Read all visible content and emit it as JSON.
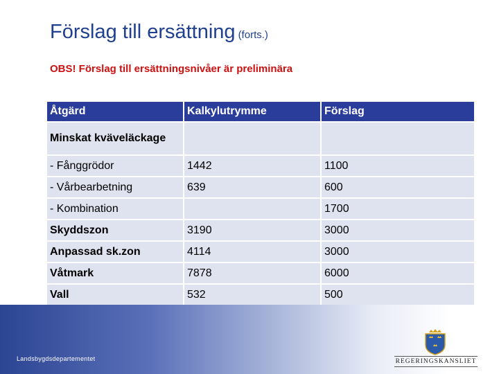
{
  "slide": {
    "title": "Förslag till ersättning",
    "title_suffix": "(forts.)",
    "warning": "OBS! Förslag till ersättningsnivåer är preliminära"
  },
  "table": {
    "headers": [
      "Åtgärd",
      "Kalkylutrymme",
      "Förslag"
    ],
    "rows": [
      {
        "measure": "Minskat kväveläckage",
        "budget": "",
        "proposal": ""
      },
      {
        "measure": "- Fånggrödor",
        "budget": "1442",
        "proposal": "1100"
      },
      {
        "measure": "- Vårbearbetning",
        "budget": "639",
        "proposal": "600"
      },
      {
        "measure": "- Kombination",
        "budget": "",
        "proposal": "1700"
      },
      {
        "measure": "Skyddszon",
        "budget": "3190",
        "proposal": "3000"
      },
      {
        "measure": "Anpassad sk.zon",
        "budget": "4114",
        "proposal": "3000"
      },
      {
        "measure": "Våtmark",
        "budget": "7878",
        "proposal": "6000"
      },
      {
        "measure": "Vall",
        "budget": "532",
        "proposal": "500"
      }
    ]
  },
  "footer": {
    "department": "Landsbygdsdepartementet",
    "logo_text": "REGERINGSKANSLIET",
    "crest_icon": "three-crowns-crest-icon"
  },
  "colors": {
    "title": "#1f3f8f",
    "warning": "#cc1111",
    "header_bg": "#2a3d9b",
    "cell_bg": "#dfe3f0"
  }
}
